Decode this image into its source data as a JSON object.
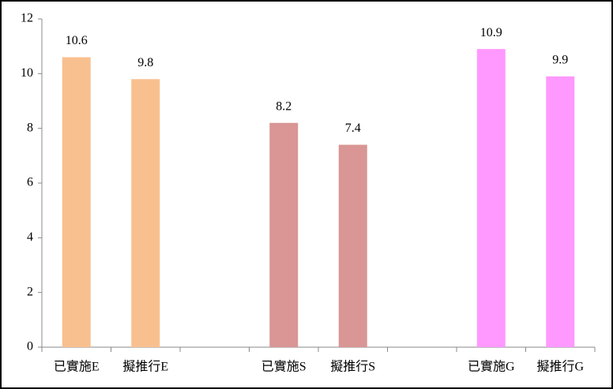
{
  "chart_data": {
    "type": "bar",
    "categories": [
      "已實施E",
      "擬推行E",
      null,
      "已實施S",
      "擬推行S",
      null,
      "已實施G",
      "擬推行G"
    ],
    "values": [
      10.6,
      9.8,
      null,
      8.2,
      7.4,
      null,
      10.9,
      9.9
    ],
    "colors": [
      "#f9c08f",
      "#f9c08f",
      null,
      "#d99694",
      "#d99694",
      null,
      "#ff99ff",
      "#ff99ff"
    ],
    "ylim": [
      0,
      12
    ],
    "yticks": [
      0,
      2,
      4,
      6,
      8,
      10,
      12
    ],
    "grid": false
  }
}
